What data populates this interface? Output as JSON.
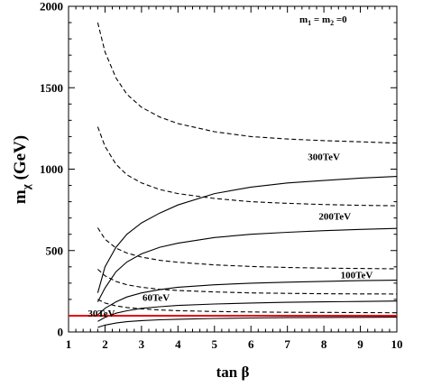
{
  "chart_data": {
    "type": "line",
    "title": "",
    "xlabel": "tan β",
    "ylabel": "mχ (GeV)",
    "ylabel_main": "m",
    "ylabel_sub": "χ",
    "ylabel_unit": " (GeV)",
    "xlim": [
      1,
      10
    ],
    "ylim": [
      0,
      2000
    ],
    "x_ticks": [
      "1",
      "2",
      "3",
      "4",
      "5",
      "6",
      "7",
      "8",
      "9",
      "10"
    ],
    "y_ticks": [
      "0",
      "500",
      "1000",
      "1500",
      "2000"
    ],
    "annotation": "m1 = m2 =0",
    "annotation_parts": {
      "a": "m",
      "a_sub": "1",
      "mid": " = m",
      "b_sub": "2",
      "end": " =0"
    },
    "reference_line": {
      "y": 100,
      "color": "#e8000b"
    },
    "curve_labels": [
      {
        "text": "300TeV",
        "x": 8.0,
        "y": 1055
      },
      {
        "text": "200TeV",
        "x": 8.3,
        "y": 690
      },
      {
        "text": "100TeV",
        "x": 8.9,
        "y": 330
      },
      {
        "text": "60TeV",
        "x": 3.4,
        "y": 190
      },
      {
        "text": "30TeV",
        "x": 1.9,
        "y": 95
      }
    ],
    "series": [
      {
        "style": "solid",
        "x": [
          1.8,
          2,
          2.3,
          2.6,
          3,
          3.5,
          4,
          5,
          6,
          7,
          8,
          9,
          10
        ],
        "values": [
          240,
          400,
          520,
          600,
          670,
          730,
          780,
          850,
          890,
          915,
          930,
          945,
          955
        ]
      },
      {
        "style": "solid",
        "x": [
          1.8,
          2,
          2.3,
          2.6,
          3,
          3.5,
          4,
          5,
          6,
          7,
          8,
          9,
          10
        ],
        "values": [
          185,
          270,
          370,
          430,
          480,
          520,
          545,
          580,
          600,
          612,
          622,
          630,
          636
        ]
      },
      {
        "style": "solid",
        "x": [
          1.8,
          2,
          2.3,
          2.6,
          3,
          3.5,
          4,
          5,
          6,
          7,
          8,
          9,
          10
        ],
        "values": [
          105,
          145,
          185,
          215,
          240,
          260,
          275,
          290,
          300,
          306,
          311,
          315,
          318
        ]
      },
      {
        "style": "solid",
        "x": [
          1.8,
          2,
          2.3,
          2.6,
          3,
          3.5,
          4,
          5,
          6,
          7,
          8,
          9,
          10
        ],
        "values": [
          65,
          90,
          115,
          130,
          145,
          155,
          163,
          172,
          178,
          182,
          185,
          187,
          190
        ]
      },
      {
        "style": "solid",
        "x": [
          1.8,
          2,
          2.3,
          2.6,
          3,
          3.5,
          4,
          5,
          6,
          7,
          8,
          9,
          10
        ],
        "values": [
          28,
          42,
          55,
          63,
          70,
          75,
          78,
          83,
          86,
          88,
          89,
          90,
          91
        ]
      },
      {
        "style": "dashed",
        "x": [
          1.8,
          2,
          2.3,
          2.6,
          3,
          3.5,
          4,
          5,
          6,
          7,
          8,
          9,
          10
        ],
        "values": [
          1900,
          1720,
          1560,
          1460,
          1380,
          1320,
          1280,
          1230,
          1200,
          1185,
          1175,
          1168,
          1160
        ]
      },
      {
        "style": "dashed",
        "x": [
          1.8,
          2,
          2.3,
          2.6,
          3,
          3.5,
          4,
          5,
          6,
          7,
          8,
          9,
          10
        ],
        "values": [
          1260,
          1140,
          1030,
          965,
          915,
          875,
          850,
          820,
          800,
          790,
          783,
          778,
          775
        ]
      },
      {
        "style": "dashed",
        "x": [
          1.8,
          2,
          2.3,
          2.6,
          3,
          3.5,
          4,
          5,
          6,
          7,
          8,
          9,
          10
        ],
        "values": [
          640,
          570,
          515,
          485,
          460,
          440,
          428,
          412,
          402,
          396,
          392,
          390,
          388
        ]
      },
      {
        "style": "dashed",
        "x": [
          1.8,
          2,
          2.3,
          2.6,
          3,
          3.5,
          4,
          5,
          6,
          7,
          8,
          9,
          10
        ],
        "values": [
          385,
          345,
          310,
          290,
          275,
          262,
          255,
          246,
          240,
          237,
          235,
          234,
          233
        ]
      },
      {
        "style": "dashed",
        "x": [
          1.8,
          2,
          2.3,
          2.6,
          3,
          3.5,
          4,
          5,
          6,
          7,
          8,
          9,
          10
        ],
        "values": [
          200,
          178,
          160,
          150,
          142,
          135,
          131,
          126,
          123,
          121,
          120,
          119,
          118
        ]
      }
    ]
  }
}
